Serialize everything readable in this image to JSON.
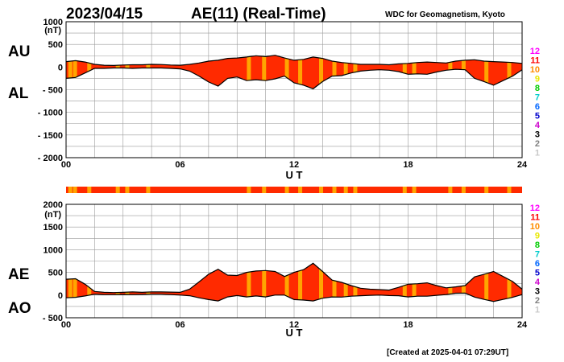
{
  "header": {
    "date": "2023/04/15",
    "title": "AE(11) (Real-Time)",
    "source": "WDC for Geomagnetism, Kyoto"
  },
  "footer": {
    "created": "[Created at 2025-04-01 07:29UT]"
  },
  "legend": {
    "numbers": [
      "12",
      "11",
      "10",
      "9",
      "8",
      "7",
      "6",
      "5",
      "4",
      "3",
      "2",
      "1"
    ],
    "colors": [
      "#ff00ff",
      "#ff0000",
      "#ff8c00",
      "#e8e800",
      "#00cc00",
      "#00cccc",
      "#0066ff",
      "#0000cc",
      "#cc00cc",
      "#000000",
      "#808080",
      "#c8c8c8"
    ]
  },
  "colors": {
    "fill": "#ff2a00",
    "stripe": "#ffa500",
    "line": "#000000"
  },
  "chart_data": [
    {
      "type": "area",
      "name": "AU/AL",
      "unit_label": "(nT)",
      "side_labels": [
        "AU",
        "AL"
      ],
      "xlabel": "U T",
      "xlim": [
        0,
        24
      ],
      "ylim": [
        -2000,
        1000
      ],
      "xticks": [
        "00",
        "06",
        "12",
        "18",
        "24"
      ],
      "yticks": [
        "1000",
        "500",
        "0",
        "- 500",
        "- 1000",
        "- 1500",
        "- 2000"
      ],
      "x": [
        0,
        0.5,
        1,
        1.5,
        2,
        2.5,
        3,
        3.5,
        4,
        4.5,
        5,
        5.5,
        6,
        6.5,
        7,
        7.5,
        8,
        8.5,
        9,
        9.5,
        10,
        10.5,
        11,
        11.5,
        12,
        12.5,
        13,
        13.5,
        14,
        14.5,
        15,
        15.5,
        16,
        16.5,
        17,
        17.5,
        18,
        18.5,
        19,
        19.5,
        20,
        20.5,
        21,
        21.5,
        22,
        22.5,
        23,
        23.5,
        24
      ],
      "series": [
        {
          "name": "AU",
          "values": [
            120,
            140,
            110,
            60,
            40,
            35,
            45,
            50,
            50,
            60,
            55,
            45,
            40,
            60,
            90,
            130,
            150,
            190,
            200,
            220,
            250,
            230,
            260,
            200,
            150,
            170,
            220,
            190,
            130,
            100,
            80,
            60,
            60,
            60,
            50,
            70,
            80,
            100,
            110,
            100,
            90,
            130,
            150,
            160,
            130,
            120,
            110,
            100,
            80
          ]
        },
        {
          "name": "AL",
          "values": [
            -250,
            -230,
            -130,
            -30,
            -30,
            -20,
            -20,
            -30,
            -20,
            -20,
            -20,
            -30,
            -40,
            -90,
            -200,
            -330,
            -420,
            -250,
            -220,
            -300,
            -280,
            -300,
            -260,
            -200,
            -350,
            -400,
            -480,
            -320,
            -200,
            -190,
            -130,
            -90,
            -70,
            -60,
            -70,
            -100,
            -160,
            -150,
            -160,
            -110,
            -70,
            -50,
            -60,
            -250,
            -320,
            -400,
            -300,
            -200,
            -60
          ]
        }
      ],
      "stripe_hours": [
        0.2,
        0.45,
        1.2,
        2.7,
        3.2,
        4.3,
        9.6,
        10.4,
        11.6,
        12.3,
        13.4,
        14.1,
        14.7,
        15.2,
        17.8,
        18.3,
        20.2,
        20.9,
        22.1,
        23.3
      ]
    },
    {
      "type": "area",
      "name": "AE/AO",
      "unit_label": "(nT)",
      "side_labels": [
        "AE",
        "AO"
      ],
      "xlabel": "U T",
      "xlim": [
        0,
        24
      ],
      "ylim": [
        -500,
        2000
      ],
      "xticks": [
        "00",
        "06",
        "12",
        "18",
        "24"
      ],
      "yticks": [
        "2000",
        "1500",
        "1000",
        "500",
        "0",
        "- 500"
      ],
      "x": [
        0,
        0.5,
        1,
        1.5,
        2,
        2.5,
        3,
        3.5,
        4,
        4.5,
        5,
        5.5,
        6,
        6.5,
        7,
        7.5,
        8,
        8.5,
        9,
        9.5,
        10,
        10.5,
        11,
        11.5,
        12,
        12.5,
        13,
        13.5,
        14,
        14.5,
        15,
        15.5,
        16,
        16.5,
        17,
        17.5,
        18,
        18.5,
        19,
        19.5,
        20,
        20.5,
        21,
        21.5,
        22,
        22.5,
        23,
        23.5,
        24
      ],
      "series": [
        {
          "name": "AE",
          "values": [
            350,
            360,
            240,
            80,
            60,
            55,
            60,
            70,
            60,
            70,
            70,
            65,
            60,
            130,
            290,
            460,
            570,
            440,
            430,
            500,
            530,
            540,
            520,
            410,
            500,
            560,
            700,
            520,
            330,
            280,
            210,
            150,
            130,
            120,
            110,
            170,
            240,
            250,
            270,
            210,
            160,
            180,
            210,
            400,
            460,
            520,
            410,
            300,
            130
          ]
        },
        {
          "name": "AO",
          "values": [
            -60,
            -50,
            -20,
            20,
            10,
            10,
            15,
            10,
            15,
            20,
            20,
            10,
            0,
            -15,
            -60,
            -100,
            -130,
            -40,
            -10,
            -40,
            -20,
            -40,
            0,
            0,
            -100,
            -110,
            -130,
            -70,
            -40,
            -45,
            -25,
            -15,
            -5,
            0,
            -10,
            -15,
            -40,
            -25,
            -25,
            -5,
            10,
            40,
            45,
            -45,
            -95,
            -140,
            -95,
            -50,
            10
          ]
        }
      ],
      "stripe_hours": [
        0.2,
        0.45,
        1.2,
        2.7,
        3.2,
        4.3,
        9.6,
        10.4,
        11.6,
        12.3,
        13.4,
        14.1,
        14.7,
        15.2,
        17.8,
        18.3,
        20.2,
        20.9,
        22.1,
        23.3
      ]
    }
  ]
}
